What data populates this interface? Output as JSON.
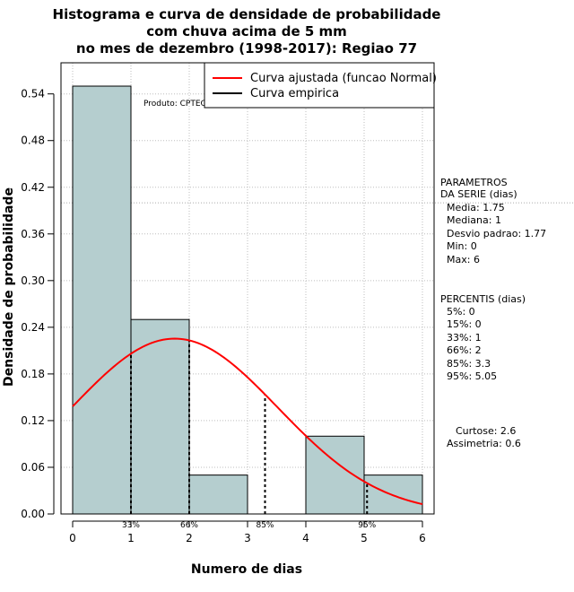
{
  "chart_data": {
    "type": "bar",
    "title_lines": [
      "Histograma e curva de densidade de probabilidade",
      "com chuva acima de 5 mm",
      "no mes de dezembro (1998-2017): Regiao 77"
    ],
    "xlabel": "Numero de dias",
    "ylabel": "Densidade de probabilidade",
    "xlim": [
      -0.2,
      6.2
    ],
    "ylim": [
      0,
      0.58
    ],
    "x_ticks": [
      0,
      1,
      2,
      3,
      4,
      5,
      6
    ],
    "y_ticks": [
      0.0,
      0.06,
      0.12,
      0.18,
      0.24,
      0.3,
      0.36,
      0.42,
      0.48,
      0.54
    ],
    "y_tick_labels": [
      "0.00",
      "0.06",
      "0.12",
      "0.18",
      "0.24",
      "0.30",
      "0.36",
      "0.42",
      "0.48",
      "0.54"
    ],
    "bins": [
      {
        "from": 0,
        "to": 1,
        "density": 0.55
      },
      {
        "from": 1,
        "to": 2,
        "density": 0.25
      },
      {
        "from": 2,
        "to": 3,
        "density": 0.05
      },
      {
        "from": 3,
        "to": 4,
        "density": 0.0
      },
      {
        "from": 4,
        "to": 5,
        "density": 0.1
      },
      {
        "from": 5,
        "to": 6,
        "density": 0.05
      }
    ],
    "bar_color": "#b5cecf",
    "curve_color": "#ff0000",
    "normal_fit": {
      "mean": 1.75,
      "sd": 1.77
    },
    "percentile_markers": [
      {
        "label": "33%",
        "x": 1.0
      },
      {
        "label": "66%",
        "x": 2.0
      },
      {
        "label": "85%",
        "x": 3.3
      },
      {
        "label": "95%",
        "x": 5.05
      }
    ],
    "reference_line_y": 0.4,
    "legend": {
      "position": "top-right",
      "entries": [
        {
          "label": "Curva ajustada (funcao Normal)",
          "color": "#ff0000"
        },
        {
          "label": "Curva empirica",
          "color": "#000000"
        }
      ]
    },
    "annotation": "Produto: CPTEC/INPE"
  },
  "side_panel": {
    "params_heading": [
      "PARAMETROS",
      "DA SERIE (dias)"
    ],
    "params": [
      "Media: 1.75",
      "Mediana: 1",
      "Desvio padrao: 1.77",
      "Min: 0",
      "Max: 6"
    ],
    "percentis_heading": "PERCENTIS (dias)",
    "percentis": [
      "5%: 0",
      "15%: 0",
      "33%: 1",
      "66%: 2",
      "85%: 3.3",
      "95%: 5.05"
    ],
    "curtose": "Curtose: 2.6",
    "assimetria": "Assimetria: 0.6"
  }
}
